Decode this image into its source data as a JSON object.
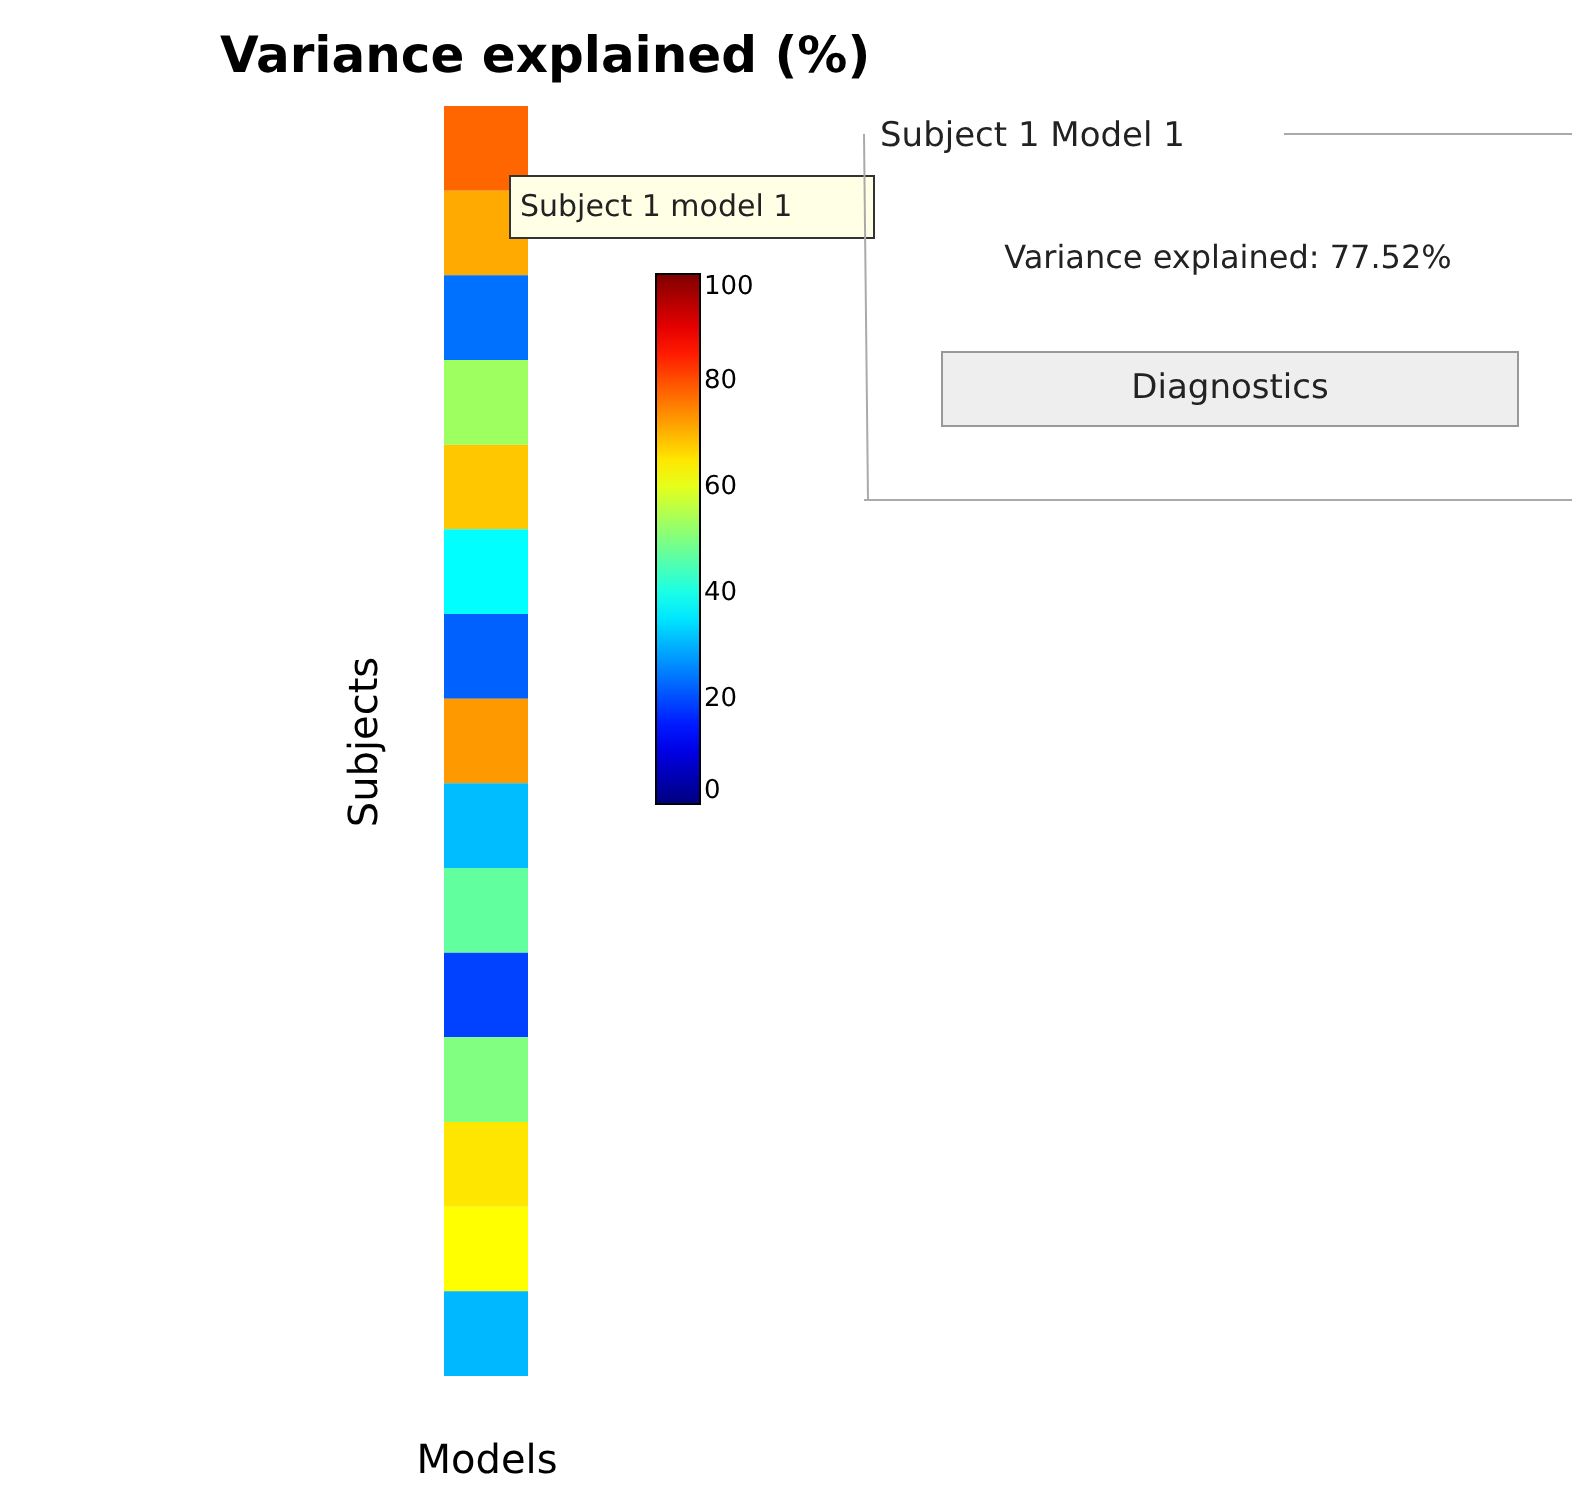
{
  "chart_data": {
    "type": "heatmap",
    "title": "Variance explained (%)",
    "xlabel": "Models",
    "ylabel": "Subjects",
    "categories": [
      null
    ],
    "y_categories": [
      null,
      null,
      null,
      null,
      null,
      null,
      null,
      null,
      null,
      null,
      null,
      null,
      null,
      null,
      null
    ],
    "cells": [
      [
        77.52
      ],
      [
        70.8
      ],
      [
        23.5
      ],
      [
        53
      ],
      [
        68
      ],
      [
        37.5
      ],
      [
        22
      ],
      [
        72.5
      ],
      [
        31
      ],
      [
        47
      ],
      [
        19
      ],
      [
        50
      ],
      [
        65
      ],
      [
        62.5
      ],
      [
        30.5
      ]
    ],
    "clim": [
      0,
      100
    ],
    "cticks": [
      0,
      20,
      40,
      60,
      80,
      100
    ],
    "tick_labels": false,
    "annotations": [
      "Subject 1 model 1",
      "Subject 1 Model 1",
      "Variance explained: 77.52%",
      "Diagnostics"
    ]
  }
}
